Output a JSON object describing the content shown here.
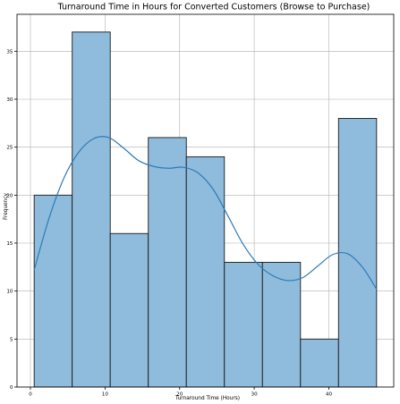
{
  "chart_data": {
    "type": "bar",
    "title": "Turnaround Time in Hours for Converted Customers (Browse to Purchase)",
    "xlabel": "Turnaround Time (Hours)",
    "ylabel": "Frequency",
    "bins": [
      {
        "x0": 0.5,
        "x1": 5.6,
        "count": 20
      },
      {
        "x0": 5.6,
        "x1": 10.7,
        "count": 37
      },
      {
        "x0": 10.7,
        "x1": 15.8,
        "count": 16
      },
      {
        "x0": 15.8,
        "x1": 20.9,
        "count": 26
      },
      {
        "x0": 20.9,
        "x1": 26.0,
        "count": 24
      },
      {
        "x0": 26.0,
        "x1": 31.1,
        "count": 13
      },
      {
        "x0": 31.1,
        "x1": 36.2,
        "count": 13
      },
      {
        "x0": 36.2,
        "x1": 41.3,
        "count": 5
      },
      {
        "x0": 41.3,
        "x1": 46.4,
        "count": 28
      }
    ],
    "kde": {
      "x": [
        0.5,
        2.5,
        4.5,
        6.5,
        8.5,
        10.5,
        12.5,
        14.5,
        16.5,
        18.5,
        20.5,
        22.5,
        24.5,
        26.5,
        28.5,
        30.5,
        32.5,
        34.5,
        36.5,
        38.5,
        40.5,
        42.5,
        44.5,
        46.4
      ],
      "y": [
        12.2,
        17.6,
        21.8,
        24.5,
        25.9,
        26.0,
        24.9,
        23.6,
        23.0,
        22.8,
        22.9,
        22.3,
        20.6,
        17.8,
        14.9,
        12.8,
        11.6,
        11.1,
        11.4,
        12.6,
        13.8,
        13.9,
        12.5,
        10.2
      ]
    },
    "xticks": [
      0,
      10,
      20,
      30,
      40
    ],
    "yticks": [
      0,
      5,
      10,
      15,
      20,
      25,
      30,
      35
    ],
    "xlim": [
      -1.8,
      48.7
    ],
    "ylim": [
      0,
      38.85
    ],
    "grid": true,
    "colors": {
      "bar_fill": "#8fbbdc",
      "bar_edge": "#1a1a1a",
      "kde_line": "#2f7bb6",
      "grid": "#b0b0b0"
    }
  }
}
